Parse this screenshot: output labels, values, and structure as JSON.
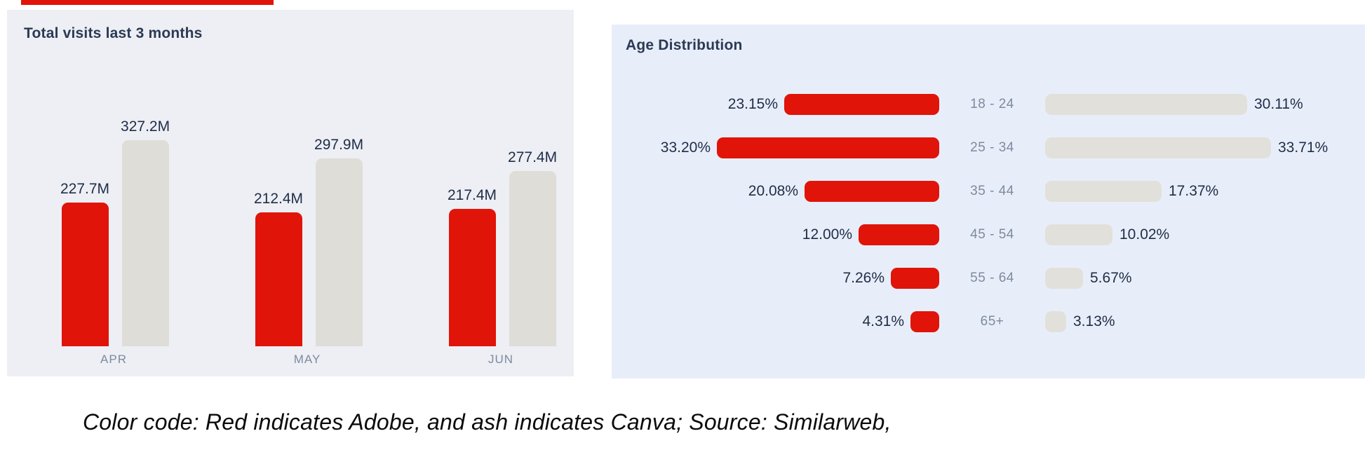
{
  "colors": {
    "adobe_red": "#e01408",
    "ash_left_bars": "#dfddd7",
    "ash_right_bars": "#e2e0da",
    "panel_left_bg": "#edeff4",
    "panel_right_bg": "#e8eef9",
    "title_text": "#2b3a54",
    "value_text": "#1f2d47",
    "muted_text": "#7e8aa0"
  },
  "caption": {
    "text": "Color code: Red indicates Adobe, and ash indicates Canva; Source: Similarweb,"
  },
  "chart_data": [
    {
      "type": "bar",
      "title": "Total visits last 3 months",
      "categories": [
        "APR",
        "MAY",
        "JUN"
      ],
      "series": [
        {
          "name": "Adobe",
          "values": [
            227.7,
            212.4,
            217.4
          ]
        },
        {
          "name": "Canva",
          "values": [
            327.2,
            297.9,
            277.4
          ]
        }
      ],
      "value_suffix": "M",
      "ylim": [
        0,
        340
      ],
      "grid": false,
      "legend": "none (color-coded: red = Adobe, ash = Canva)"
    },
    {
      "type": "bar",
      "subtype": "tornado",
      "title": "Age Distribution",
      "categories": [
        "18 - 24",
        "25 - 34",
        "35 - 44",
        "45 - 54",
        "55 - 64",
        "65+"
      ],
      "series": [
        {
          "name": "Adobe",
          "side": "left",
          "values": [
            23.15,
            33.2,
            20.08,
            12.0,
            7.26,
            4.31
          ]
        },
        {
          "name": "Canva",
          "side": "right",
          "values": [
            30.11,
            33.71,
            17.37,
            10.02,
            5.67,
            3.13
          ]
        }
      ],
      "value_suffix": "%",
      "xlim": [
        0,
        34
      ],
      "grid": false,
      "legend": "none (color-coded: red = Adobe, ash = Canva)"
    }
  ]
}
